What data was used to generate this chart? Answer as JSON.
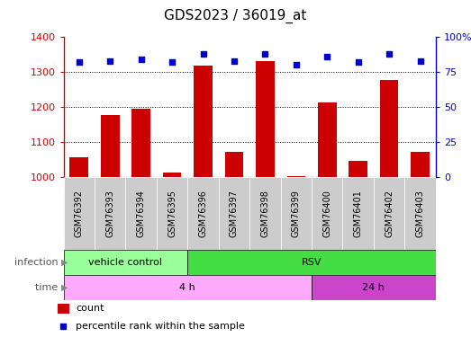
{
  "title": "GDS2023 / 36019_at",
  "samples": [
    "GSM76392",
    "GSM76393",
    "GSM76394",
    "GSM76395",
    "GSM76396",
    "GSM76397",
    "GSM76398",
    "GSM76399",
    "GSM76400",
    "GSM76401",
    "GSM76402",
    "GSM76403"
  ],
  "counts": [
    1057,
    1178,
    1196,
    1012,
    1318,
    1072,
    1330,
    1003,
    1214,
    1047,
    1278,
    1072
  ],
  "percentile_ranks": [
    82,
    83,
    84,
    82,
    88,
    83,
    88,
    80,
    86,
    82,
    88,
    83
  ],
  "ylim_left": [
    1000,
    1400
  ],
  "ylim_right": [
    0,
    100
  ],
  "yticks_left": [
    1000,
    1100,
    1200,
    1300,
    1400
  ],
  "yticks_right": [
    0,
    25,
    50,
    75,
    100
  ],
  "bar_color": "#cc0000",
  "dot_color": "#0000cc",
  "infection_labels": [
    {
      "label": "vehicle control",
      "start": 0,
      "end": 4,
      "color": "#99ff99"
    },
    {
      "label": "RSV",
      "start": 4,
      "end": 12,
      "color": "#44dd44"
    }
  ],
  "time_labels": [
    {
      "label": "4 h",
      "start": 0,
      "end": 8,
      "color": "#ffaaff"
    },
    {
      "label": "24 h",
      "start": 8,
      "end": 12,
      "color": "#cc44cc"
    }
  ],
  "sample_bg_color": "#cccccc",
  "plot_bg_color": "#ffffff",
  "infection_row_label": "infection",
  "time_row_label": "time",
  "legend_count_label": "count",
  "legend_percentile_label": "percentile rank within the sample",
  "title_fontsize": 11,
  "tick_fontsize": 8,
  "label_fontsize": 8,
  "annotation_fontsize": 8
}
